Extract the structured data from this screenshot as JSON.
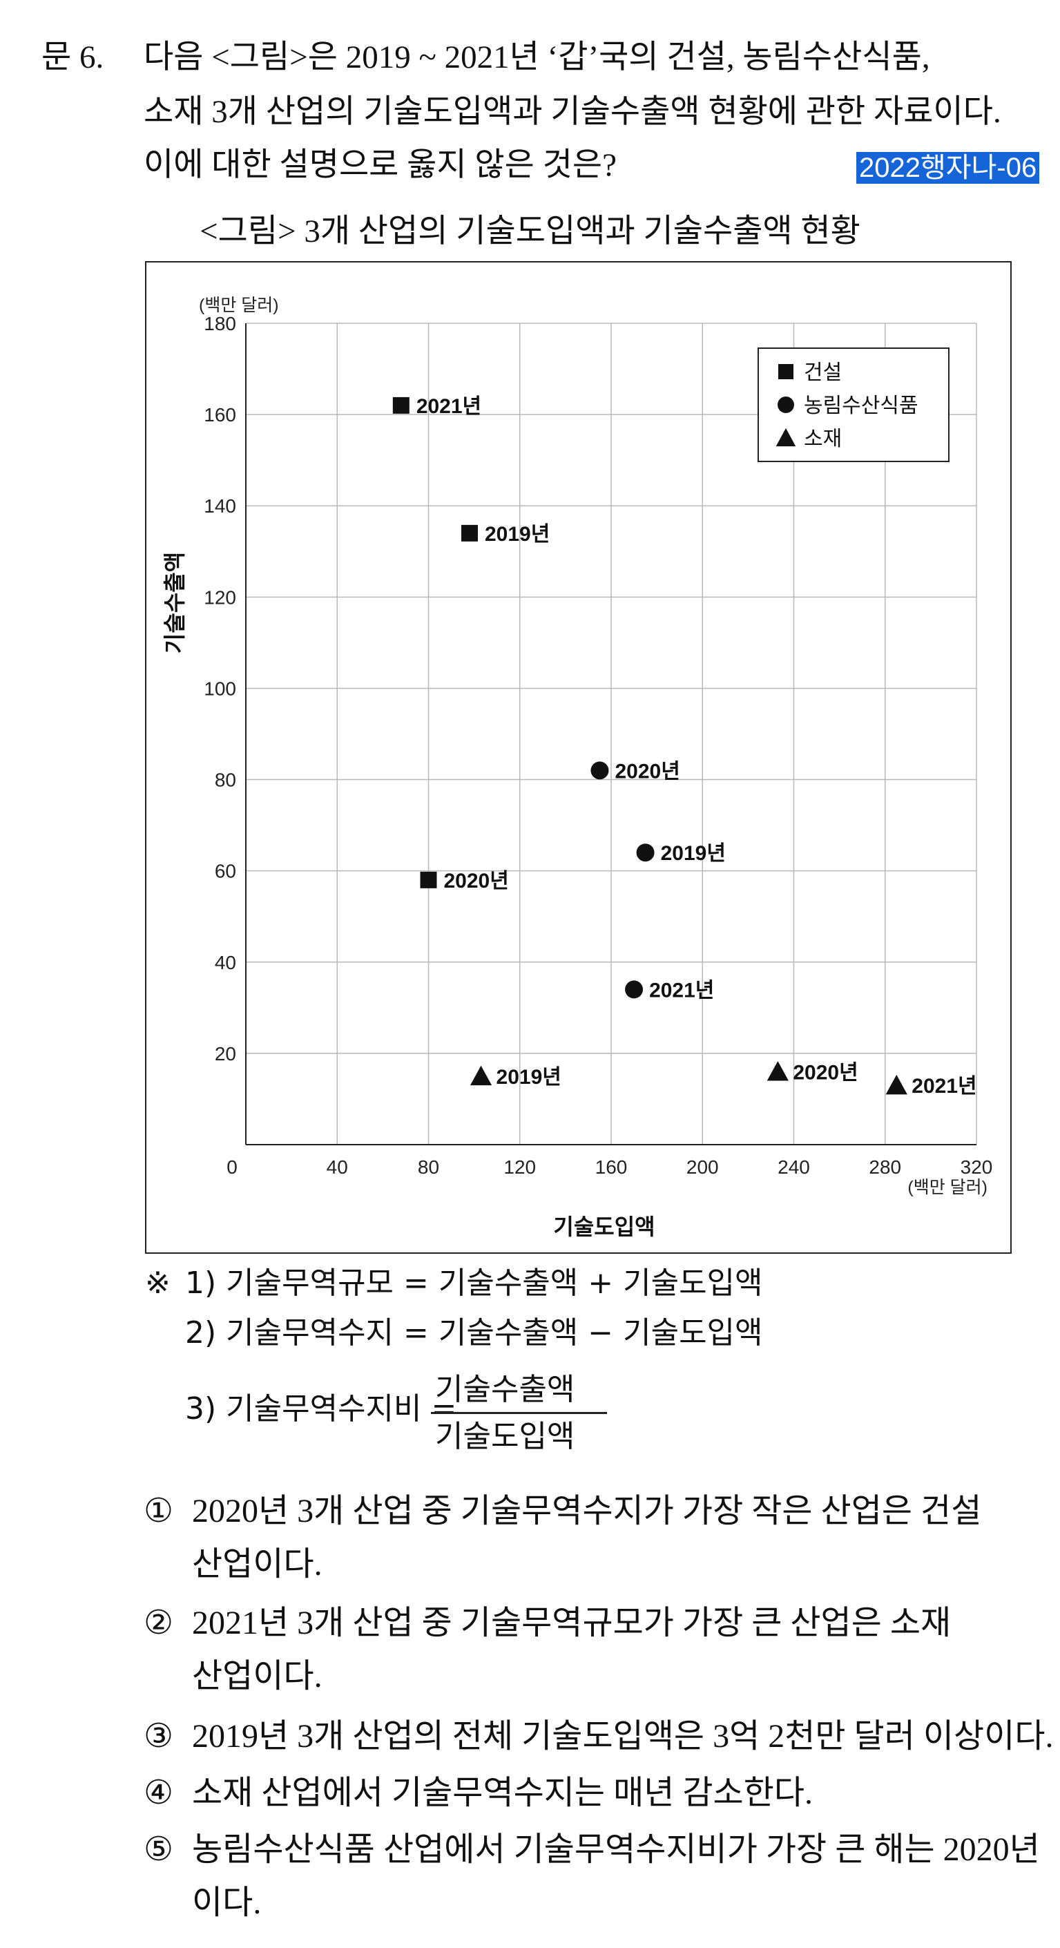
{
  "question": {
    "number": "문  6.",
    "lines": [
      "다음 <그림>은 2019 ~ 2021년 ‘갑’국의 건설, 농림수산식품,",
      "소재 3개 산업의 기술도입액과 기술수출액 현황에 관한 자료이다.",
      "이에 대한 설명으로 옳지 않은 것은?"
    ],
    "tag": "2022행자나-06",
    "tag_color": "#1565d8"
  },
  "figure_title": "<그림> 3개 산업의 기술도입액과 기술수출액 현황",
  "chart_data": {
    "type": "scatter",
    "xlabel": "기술도입액",
    "ylabel": "기술수출액",
    "x_unit": "(백만 달러)",
    "y_unit": "(백만 달러)",
    "xlim": [
      0,
      320
    ],
    "ylim": [
      0,
      180
    ],
    "x_ticks": [
      0,
      40,
      80,
      120,
      160,
      200,
      240,
      280,
      320
    ],
    "y_ticks": [
      20,
      40,
      60,
      80,
      100,
      120,
      140,
      160,
      180
    ],
    "grid": true,
    "legend_position": "top-right",
    "series": [
      {
        "name": "건설",
        "marker": "square",
        "points": [
          {
            "label": "2021년",
            "x": 68,
            "y": 162
          },
          {
            "label": "2019년",
            "x": 98,
            "y": 134
          },
          {
            "label": "2020년",
            "x": 80,
            "y": 58
          }
        ]
      },
      {
        "name": "농림수산식품",
        "marker": "circle",
        "points": [
          {
            "label": "2020년",
            "x": 155,
            "y": 82
          },
          {
            "label": "2019년",
            "x": 175,
            "y": 64
          },
          {
            "label": "2021년",
            "x": 170,
            "y": 34
          }
        ]
      },
      {
        "name": "소재",
        "marker": "triangle",
        "points": [
          {
            "label": "2019년",
            "x": 103,
            "y": 15
          },
          {
            "label": "2020년",
            "x": 233,
            "y": 16
          },
          {
            "label": "2021년",
            "x": 285,
            "y": 13
          }
        ]
      }
    ]
  },
  "notes": {
    "mark": "※",
    "n1": "1) 기술무역규모 = 기술수출액 + 기술도입액",
    "n2": "2) 기술무역수지 = 기술수출액 − 기술도입액",
    "n3_label": "3) 기술무역수지비 =",
    "n3_numerator": "기술수출액",
    "n3_denominator": "기술도입액"
  },
  "options": [
    {
      "num": "①",
      "line1": "2020년 3개 산업 중 기술무역수지가 가장 작은 산업은 건설",
      "line2": "산업이다."
    },
    {
      "num": "②",
      "line1": "2021년 3개 산업 중 기술무역규모가 가장 큰 산업은 소재",
      "line2": "산업이다."
    },
    {
      "num": "③",
      "line1": "2019년 3개 산업의 전체 기술도입액은 3억 2천만 달러 이상이다."
    },
    {
      "num": "④",
      "line1": "소재 산업에서 기술무역수지는 매년 감소한다."
    },
    {
      "num": "⑤",
      "line1": "농림수산식품 산업에서 기술무역수지비가 가장 큰 해는 2020년",
      "line2": "이다."
    }
  ]
}
